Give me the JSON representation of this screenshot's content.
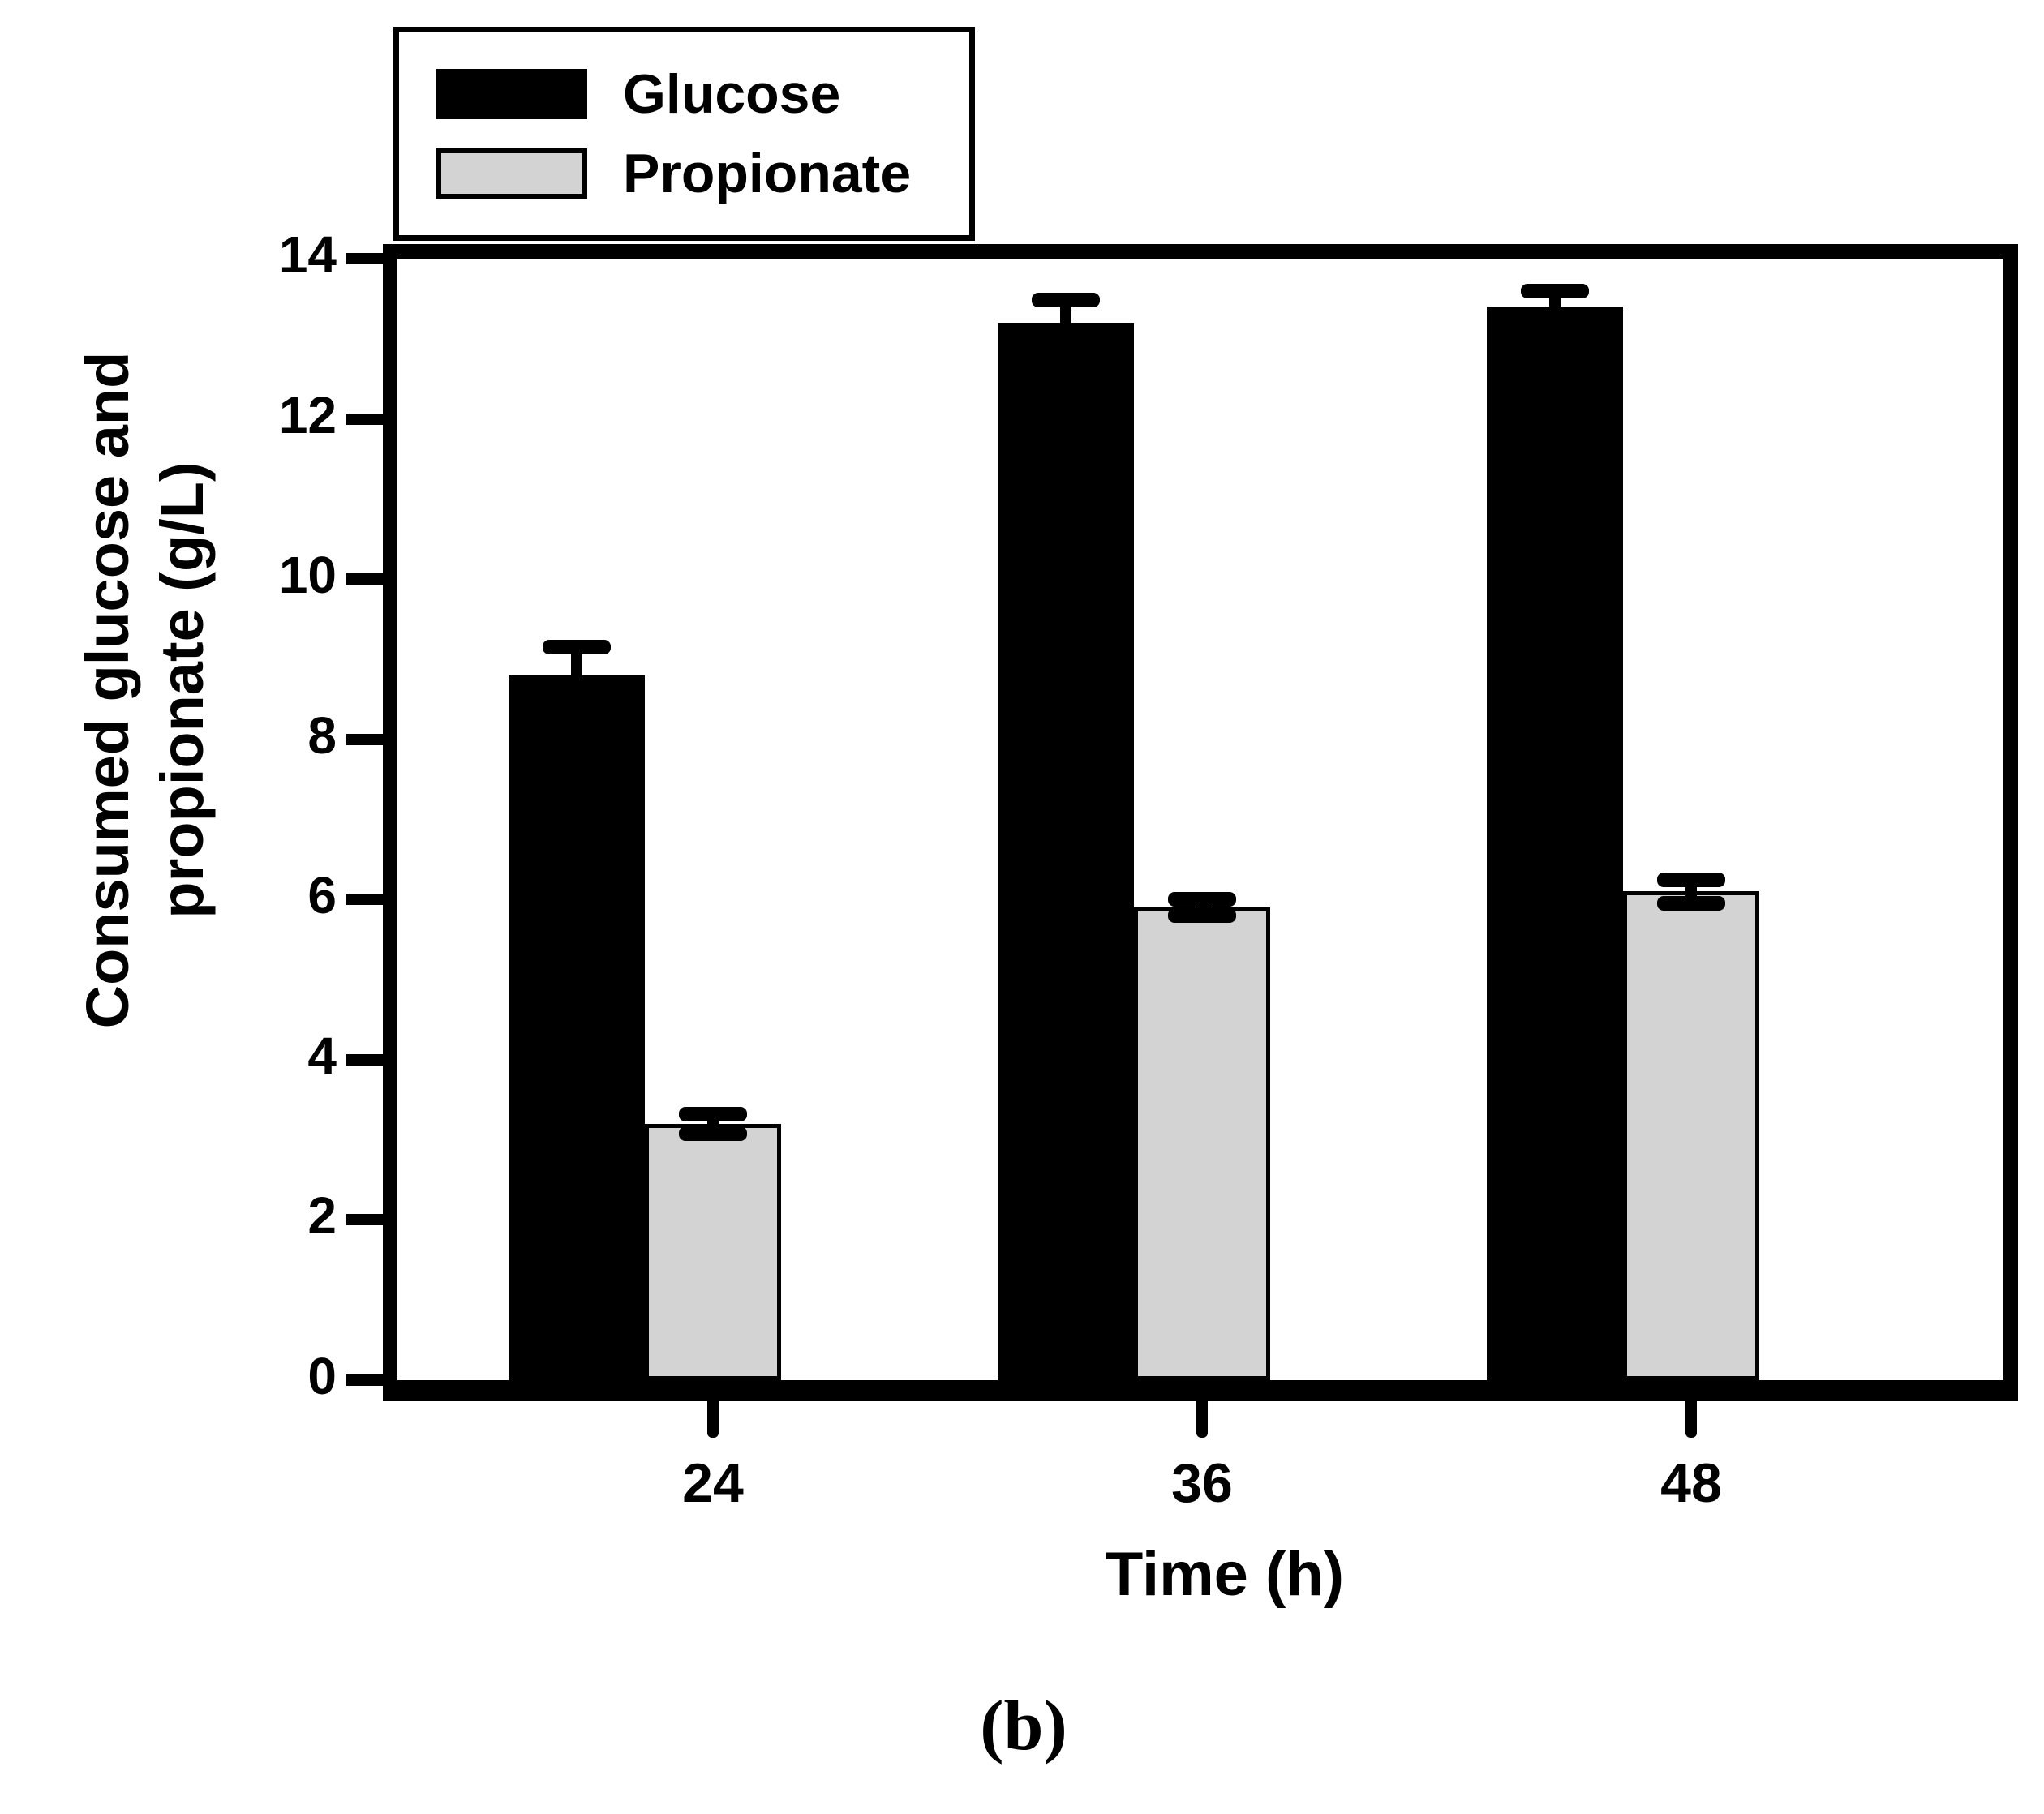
{
  "figure": {
    "caption": "(b)",
    "background_color": "#ffffff",
    "text_color": "#000000"
  },
  "legend": {
    "items": [
      {
        "label": "Glucose",
        "swatch_color": "#000000"
      },
      {
        "label": "Propionate",
        "swatch_color": "#d3d3d3"
      }
    ]
  },
  "axes": {
    "xlabel": "Time (h)",
    "ylabel_line1": "Consumed glucose and",
    "ylabel_line2": "propionate (g/L)",
    "yticks": [
      0,
      2,
      4,
      6,
      8,
      10,
      12,
      14
    ],
    "xticks": [
      "24",
      "36",
      "48"
    ]
  },
  "chart_data": {
    "type": "bar",
    "title": "",
    "categories": [
      "24",
      "36",
      "48"
    ],
    "xlabel": "Time (h)",
    "ylabel": "Consumed glucose and propionate (g/L)",
    "ylim": [
      0,
      14
    ],
    "ytick_step": 2,
    "grid": false,
    "legend_position": "top-left",
    "error_bars": true,
    "series": [
      {
        "name": "Glucose",
        "color": "#000000",
        "values": [
          8.8,
          13.2,
          13.4
        ],
        "errors": [
          0.35,
          0.28,
          0.2
        ]
      },
      {
        "name": "Propionate",
        "color": "#d3d3d3",
        "values": [
          3.2,
          5.9,
          6.1
        ],
        "errors": [
          0.12,
          0.1,
          0.15
        ]
      }
    ]
  }
}
